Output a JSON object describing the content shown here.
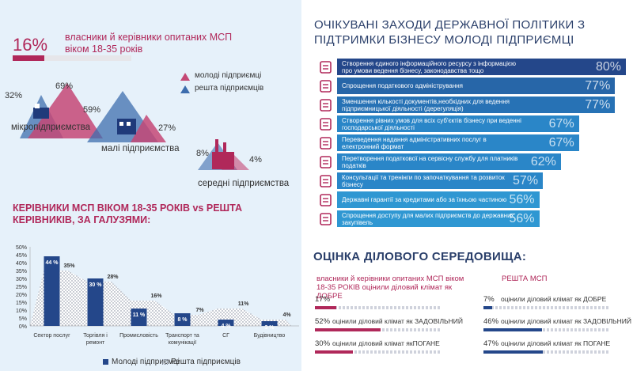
{
  "hero": {
    "percent": "16%",
    "text": "власники й керівники опитаних МСП віком 18-35 років"
  },
  "legend_top": {
    "young": "молоді підприємці",
    "rest": "решта підприємців"
  },
  "colors": {
    "pink": "#c44875",
    "navy": "#3d6dae",
    "darknavy": "#24478a",
    "blue": "#2a86c8"
  },
  "size_groups": [
    {
      "label": "мікропідприємства",
      "young": "69%",
      "rest": "32%"
    },
    {
      "label": "малі підприємства",
      "young": "27%",
      "rest": "59%"
    },
    {
      "label": "середні підприємства",
      "young": "4%",
      "rest": "8%"
    }
  ],
  "industry_title": "КЕРІВНИКИ МСП ВІКОМ 18-35 РОКІВ vs РЕШТА КЕРІВНИКІВ, ЗА ГАЛУЗЯМИ:",
  "chart_data": {
    "type": "bar",
    "categories": [
      "Сектор послуг",
      "Торгівля і ремонт",
      "Промисловість",
      "Транспорт та комунікації",
      "СГ",
      "Будівництво"
    ],
    "series": [
      {
        "name": "Молоді підприємці",
        "values": [
          44,
          30,
          11,
          8,
          4,
          3
        ],
        "labels": [
          "44 %",
          "30 %",
          "11 %",
          "8 %",
          "4 %",
          "3 %"
        ]
      },
      {
        "name": "Решта підприємців",
        "values": [
          35,
          28,
          16,
          7,
          11,
          4
        ],
        "labels": [
          "35%",
          "28%",
          "16%",
          "7%",
          "11%",
          "4%"
        ]
      }
    ],
    "yticks": [
      "0%",
      "5%",
      "10%",
      "15%",
      "20%",
      "25%",
      "30%",
      "35%",
      "40%",
      "45%",
      "50%"
    ],
    "ylim": [
      0,
      50
    ]
  },
  "right_title": "ОЧІКУВАНІ ЗАХОДИ ДЕРЖАВНОЇ ПОЛІТИКИ З ПІДТРИМКИ БІЗНЕСУ МОЛОДІ ПІДПРИЄМЦІ",
  "measures": [
    {
      "label": "Створення єдиного інформаційного ресурсу з інформацією про умови ведення бізнесу, законодавства тощо",
      "value": "80%",
      "pct": 80,
      "icon": "search-document-icon"
    },
    {
      "label": "Спрощення податкового адміністрування",
      "value": "77%",
      "pct": 77,
      "icon": "tax-form-icon"
    },
    {
      "label": "Зменшення кількості документів,необхідних для ведення підприємницької діяльності (дерегуляція)",
      "value": "77%",
      "pct": 77,
      "icon": "documents-stack-icon"
    },
    {
      "label": "Створення рівних умов для всіх суб'єктів бізнесу при веденні господарської діяльності",
      "value": "67%",
      "pct": 67,
      "icon": "people-icon"
    },
    {
      "label": "Переведення надання адміністративних послуг в електронний формат",
      "value": "67%",
      "pct": 67,
      "icon": "computer-icon"
    },
    {
      "label": "Перетворення податкової на сервісну службу для платників податків",
      "value": "62%",
      "pct": 62,
      "icon": "person-icon"
    },
    {
      "label": "Консультації та тренінги по започаткування та розвиток бізнесу",
      "value": "57%",
      "pct": 57,
      "icon": "lightbulb-icon"
    },
    {
      "label": "Державні гарантії за кредитами або за їхньою частиною",
      "value": "56%",
      "pct": 56,
      "icon": "money-hand-icon"
    },
    {
      "label": "Спрощення доступу для малих підприємств до державних закупівель",
      "value": "56%",
      "pct": 56,
      "icon": "government-building-icon"
    }
  ],
  "eval_title": "ОЦІНКА ДІЛОВОГО СЕРЕДОВИЩА:",
  "eval_left": {
    "head": "власники й керівники опитаних МСП віком 18-35 РОКІВ оцінили діловий клімат як ДОБРЕ",
    "rows": [
      {
        "value": "17%",
        "pct": 17,
        "label": ""
      },
      {
        "value": "52%",
        "pct": 52,
        "label": "оцінили діловий клімат як ЗАДОВІЛЬНИЙ"
      },
      {
        "value": "30%",
        "pct": 30,
        "label": "оцінили діловий клімат якПОГАНЕ"
      }
    ]
  },
  "eval_right": {
    "head": "РЕШТА МСП",
    "rows": [
      {
        "value": "7%",
        "pct": 7,
        "label": "оцінили діловий клімат як ДОБРЕ"
      },
      {
        "value": "46%",
        "pct": 46,
        "label": "оцінили діловий клімат як ЗАДОВІЛЬНИЙ"
      },
      {
        "value": "47%",
        "pct": 47,
        "label": "оцінили діловий клімат як ПОГАНЕ"
      }
    ]
  }
}
